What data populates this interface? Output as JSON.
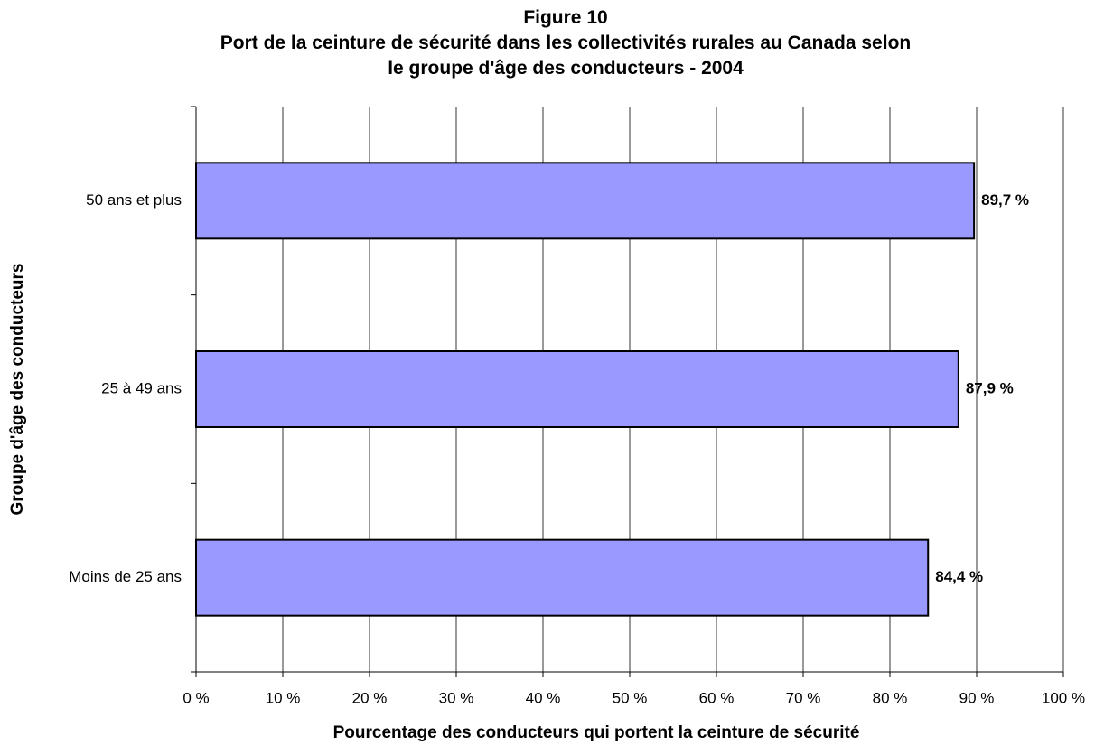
{
  "chart_data": {
    "type": "barh",
    "title": "Figure 10",
    "subtitle": "Port de la ceinture de sécurité dans les collectivités rurales au Canada selon le groupe d'âge des conducteurs - 2004",
    "xlabel": "Pourcentage des conducteurs qui portent la ceinture de sécurité",
    "ylabel": "Groupe d'âge des conducteurs",
    "categories": [
      "Moins de 25 ans",
      "25 à 49 ans",
      "50 ans et plus"
    ],
    "values": [
      84.4,
      87.9,
      89.7
    ],
    "value_labels": [
      "84,4 %",
      "87,9 %",
      "89,7 %"
    ],
    "color": "#9999ff",
    "xlim": [
      0,
      100
    ],
    "xticks": [
      {
        "value": 0,
        "label": "0 %"
      },
      {
        "value": 10,
        "label": "10 %"
      },
      {
        "value": 20,
        "label": "20 %"
      },
      {
        "value": 30,
        "label": "30 %"
      },
      {
        "value": 40,
        "label": "40 %"
      },
      {
        "value": 50,
        "label": "50 %"
      },
      {
        "value": 60,
        "label": "60 %"
      },
      {
        "value": 70,
        "label": "70 %"
      },
      {
        "value": 80,
        "label": "80 %"
      },
      {
        "value": 90,
        "label": "90 %"
      },
      {
        "value": 100,
        "label": "100 %"
      }
    ],
    "grid": true
  }
}
